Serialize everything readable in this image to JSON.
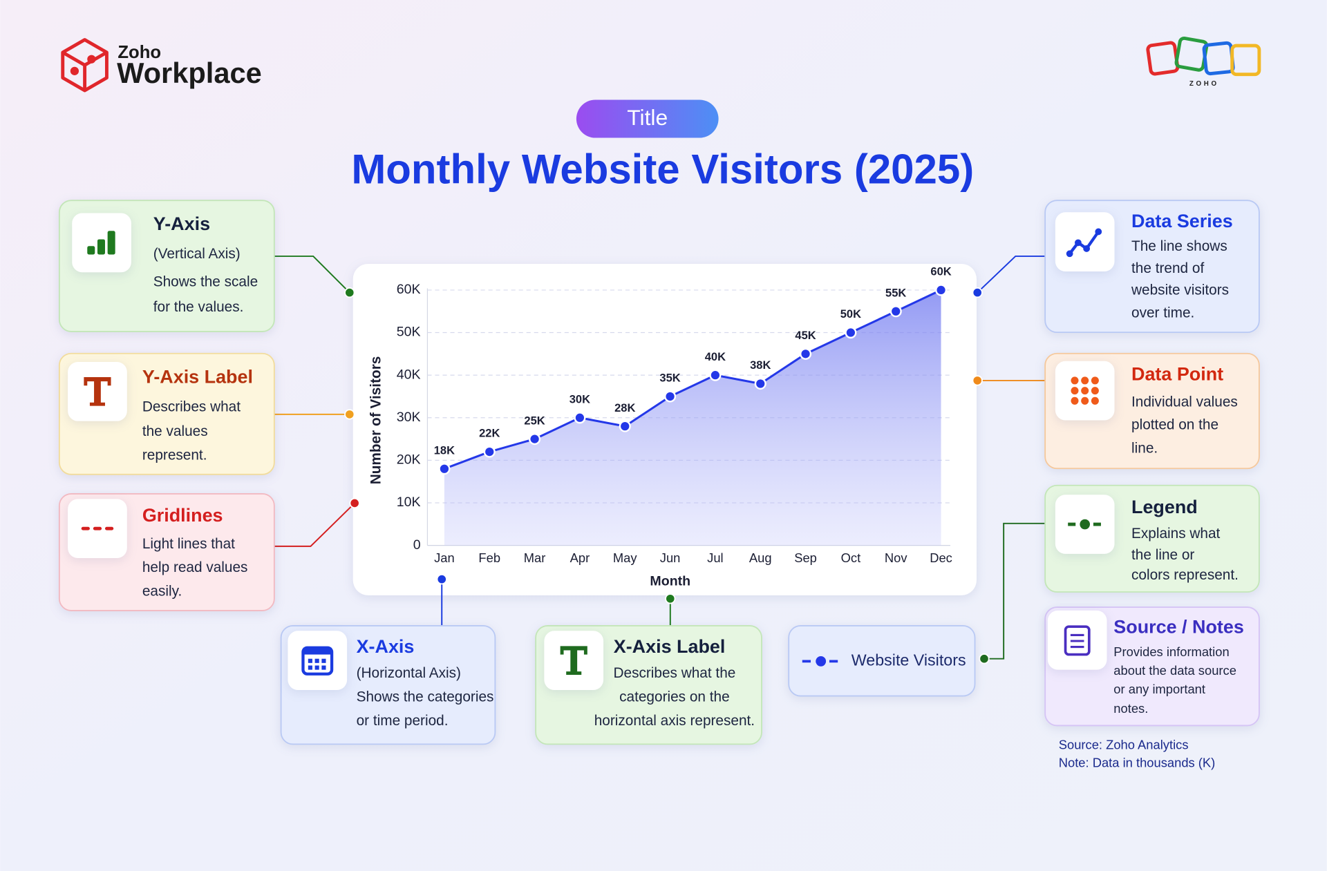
{
  "header": {
    "brand_small": "Zoho",
    "brand": "Workplace",
    "logo_text": "ZOHO"
  },
  "title_tag": "Title",
  "chart_data": {
    "type": "line",
    "title": "Monthly Website Visitors (2025)",
    "x_label": "Month",
    "y_label": "Number of Visitors",
    "categories": [
      "Jan",
      "Feb",
      "Mar",
      "Apr",
      "May",
      "Jun",
      "Jul",
      "Aug",
      "Sep",
      "Oct",
      "Nov",
      "Dec"
    ],
    "series": [
      {
        "name": "Website Visitors",
        "color": "#2438e8",
        "values": [
          18000,
          22000,
          25000,
          30000,
          28000,
          35000,
          40000,
          38000,
          45000,
          50000,
          55000,
          60000
        ],
        "value_labels": [
          "18K",
          "22K",
          "25K",
          "30K",
          "28K",
          "35K",
          "40K",
          "38K",
          "45K",
          "50K",
          "55K",
          "60K"
        ]
      }
    ],
    "ylim": [
      0,
      60000
    ],
    "yticks": [
      0,
      {
        "value": 10000,
        "label": "10K"
      },
      {
        "value": 20000,
        "label": "20K"
      },
      {
        "value": 30000,
        "label": "30K"
      },
      {
        "value": 40000,
        "label": "40K"
      },
      {
        "value": 50000,
        "label": "50K"
      },
      {
        "value": 60000,
        "label": "60K"
      }
    ],
    "grid": true,
    "area": true
  },
  "callouts": [
    {
      "title": "Y-Axis",
      "lines": [
        "(Vertical Axis)",
        "Shows the scale",
        "for the values."
      ]
    },
    {
      "title": "Y-Axis Label",
      "lines": [
        "Describes what",
        "the values",
        "represent."
      ]
    },
    {
      "title": "Gridlines",
      "lines": [
        "Light lines that",
        "help read values",
        "easily."
      ]
    },
    {
      "title": "X-Axis",
      "lines": [
        "(Horizontal Axis)",
        "Shows the categories",
        "or time period."
      ]
    },
    {
      "title": "X-Axis Label",
      "lines": [
        "Describes what the",
        "categories on the",
        "horizontal axis represent."
      ]
    },
    {
      "title": "Data Series",
      "lines": [
        "The line shows",
        "the trend of",
        "website visitors",
        "over time."
      ]
    },
    {
      "title": "Data Point",
      "lines": [
        "Individual values",
        "plotted on the",
        "line."
      ]
    },
    {
      "title": "Legend",
      "lines": [
        "Explains what",
        "the line or",
        "colors represent."
      ]
    },
    {
      "title": "Source / Notes",
      "lines": [
        "Provides information",
        "about the data source",
        "or any important",
        "notes."
      ]
    }
  ],
  "footer": {
    "source": "Source: Zoho Analytics",
    "note": "Note: Data in thousands (K)"
  }
}
